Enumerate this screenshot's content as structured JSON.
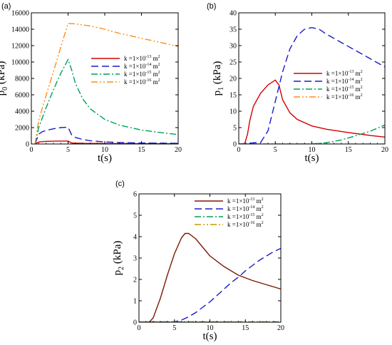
{
  "figure": {
    "legend_labels": [
      {
        "base": "k =1×10",
        "exp": "-13",
        "unit": " m",
        "unit_exp": "2"
      },
      {
        "base": "k =1×10",
        "exp": "-14",
        "unit": " m",
        "unit_exp": "2"
      },
      {
        "base": "k =1×10",
        "exp": "-15",
        "unit": " m",
        "unit_exp": "2"
      },
      {
        "base": "k =1×10",
        "exp": "-16",
        "unit": " m",
        "unit_exp": "2"
      }
    ],
    "series_styles": [
      {
        "color": "#d40000",
        "dash": ""
      },
      {
        "color": "#1a1acc",
        "dash": "10,5"
      },
      {
        "color": "#00a05a",
        "dash": "9,3,2,3"
      },
      {
        "color": "#ff8c1a",
        "dash": "9,3,2,3,2,3"
      }
    ]
  },
  "chart_data": [
    {
      "type": "line",
      "panel_label": "(a)",
      "xlabel": "t(s)",
      "ylabel": {
        "main": "p",
        "sub": "0",
        "rest": " (kPa)"
      },
      "xlim": [
        0,
        20
      ],
      "ylim": [
        0,
        16000
      ],
      "xticks": [
        0,
        5,
        10,
        15,
        20
      ],
      "yticks": [
        0,
        2000,
        4000,
        6000,
        8000,
        10000,
        12000,
        14000,
        16000
      ],
      "legend_position": "right-middle",
      "series": [
        {
          "x": [
            0.5,
            1,
            2,
            3,
            4,
            5,
            5.5,
            7,
            10,
            15,
            20
          ],
          "y": [
            0,
            250,
            320,
            340,
            350,
            350,
            120,
            80,
            60,
            40,
            30
          ]
        },
        {
          "x": [
            0.5,
            1,
            1.5,
            2,
            3,
            4,
            5,
            5.5,
            6,
            7,
            8,
            10,
            12,
            15,
            20
          ],
          "y": [
            0,
            1200,
            1500,
            1650,
            1850,
            2000,
            2050,
            1100,
            800,
            550,
            400,
            250,
            180,
            120,
            80
          ]
        },
        {
          "x": [
            0.5,
            1,
            2,
            3,
            4,
            5,
            5.5,
            6,
            7,
            8,
            10,
            12,
            15,
            18,
            20
          ],
          "y": [
            0,
            2000,
            4400,
            6600,
            8600,
            10300,
            9000,
            7400,
            5500,
            4300,
            3000,
            2300,
            1700,
            1350,
            1150
          ]
        },
        {
          "x": [
            0.5,
            1,
            2,
            3,
            4,
            5,
            6,
            8,
            10,
            12,
            15,
            18,
            20
          ],
          "y": [
            0,
            2900,
            5900,
            8800,
            11800,
            14700,
            14650,
            14400,
            14000,
            13500,
            12900,
            12300,
            11900
          ]
        }
      ]
    },
    {
      "type": "line",
      "panel_label": "(b)",
      "xlabel": "t(s)",
      "ylabel": {
        "main": "p",
        "sub": "1",
        "rest": " (kPa)"
      },
      "xlim": [
        0,
        20
      ],
      "ylim": [
        0,
        40
      ],
      "xticks": [
        0,
        5,
        10,
        15,
        20
      ],
      "yticks": [
        0,
        5,
        10,
        15,
        20,
        25,
        30,
        35,
        40
      ],
      "legend_position": "right-middle",
      "series": [
        {
          "x": [
            0,
            0.8,
            1.2,
            1.5,
            2,
            3,
            4,
            5,
            5.5,
            6,
            7,
            8,
            10,
            12,
            15,
            18,
            20
          ],
          "y": [
            0,
            0,
            3,
            7,
            11.5,
            15.5,
            18,
            19.5,
            18,
            13.5,
            9.5,
            7.5,
            5.5,
            4.5,
            3.5,
            2.6,
            2.1
          ]
        },
        {
          "x": [
            0,
            3,
            4,
            5,
            6,
            7,
            8,
            9,
            10,
            11,
            12,
            14,
            16,
            18,
            20
          ],
          "y": [
            0,
            0.5,
            4,
            13,
            22,
            29,
            33,
            35,
            35.5,
            35,
            33.5,
            31,
            28.5,
            26,
            23.5
          ]
        },
        {
          "x": [
            0,
            10,
            12,
            14,
            16,
            18,
            20
          ],
          "y": [
            0,
            0,
            0.4,
            1.2,
            2.5,
            3.9,
            5.8
          ]
        },
        {
          "x": [
            0,
            20
          ],
          "y": [
            0,
            0
          ]
        }
      ]
    },
    {
      "type": "line",
      "panel_label": "(c)",
      "xlabel": "t(s)",
      "ylabel": {
        "main": "p",
        "sub": "2",
        "rest": " (kPa)"
      },
      "xlim": [
        0,
        20
      ],
      "ylim": [
        0,
        6
      ],
      "xticks": [
        0,
        5,
        10,
        15,
        20
      ],
      "yticks": [
        0,
        1,
        2,
        3,
        4,
        5,
        6
      ],
      "legend_position": "top-right",
      "series_colors": [
        "#7a1a05",
        "#1a1acc",
        "#00a05a",
        "#c89a00"
      ],
      "series": [
        {
          "x": [
            0,
            1,
            1.5,
            2,
            3,
            4,
            5,
            6,
            6.5,
            7,
            8,
            9,
            10,
            12,
            14,
            16,
            18,
            20
          ],
          "y": [
            0,
            0,
            0.02,
            0.2,
            1.1,
            2.2,
            3.2,
            3.95,
            4.15,
            4.15,
            3.9,
            3.5,
            3.1,
            2.6,
            2.2,
            1.95,
            1.75,
            1.55
          ]
        },
        {
          "x": [
            0,
            5,
            6,
            7,
            8,
            9,
            10,
            11,
            12,
            13,
            14,
            15,
            16,
            17,
            18,
            19,
            20
          ],
          "y": [
            0,
            0.02,
            0.1,
            0.25,
            0.45,
            0.7,
            0.95,
            1.25,
            1.55,
            1.85,
            2.1,
            2.4,
            2.65,
            2.9,
            3.1,
            3.3,
            3.45
          ]
        },
        {
          "x": [
            0,
            20
          ],
          "y": [
            0.02,
            0.02
          ]
        },
        {
          "x": [
            0,
            20
          ],
          "y": [
            0.01,
            0.01
          ]
        }
      ]
    }
  ]
}
